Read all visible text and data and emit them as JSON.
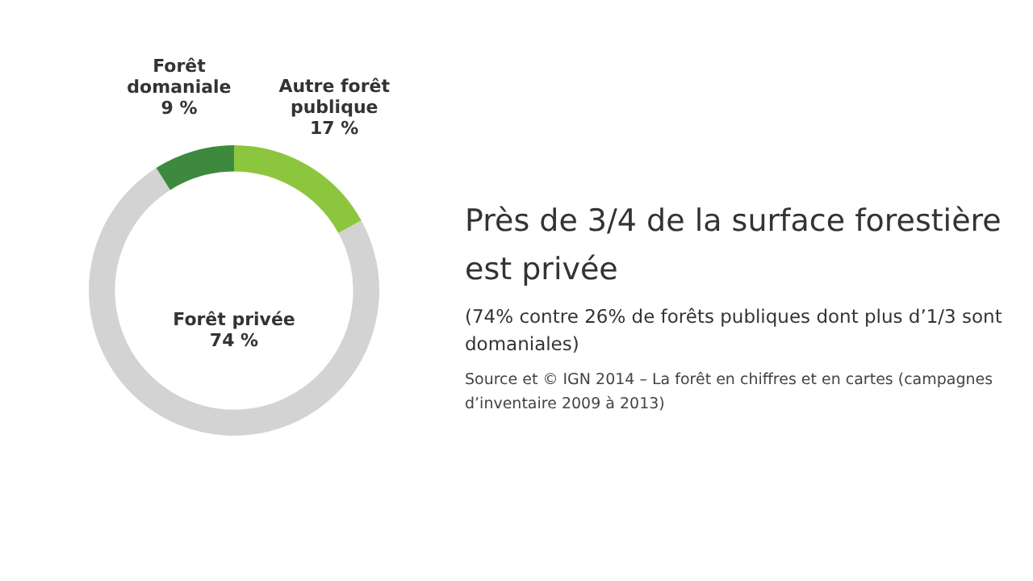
{
  "chart_data": {
    "type": "donut",
    "title": "Près de 3/4 de la surface forestière est privée",
    "subtitle": "(74% contre 26% de forêts publiques dont plus d’1/3 sont domaniales)",
    "annotations": [
      "Source et © IGN 2014 – La forêt en chiffres et en cartes (campagnes d’inventaire 2009 à 2013)"
    ],
    "categories": [
      "Autre forêt publique",
      "Forêt privée",
      "Forêt domaniale"
    ],
    "values": [
      17,
      74,
      9
    ],
    "value_labels": [
      "17 %",
      "74 %",
      "9 %"
    ],
    "colors": [
      "#8cc63e",
      "#d3d3d3",
      "#3d8a3f"
    ]
  }
}
